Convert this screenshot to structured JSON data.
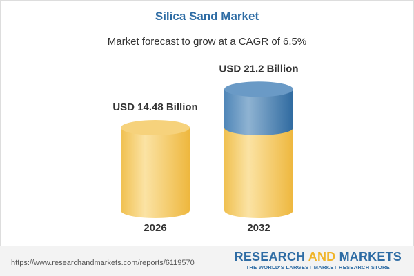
{
  "title": "Silica Sand Market",
  "subtitle": "Market forecast to grow at a CAGR of 6.5%",
  "chart_data": {
    "type": "bar",
    "categories": [
      "2026",
      "2032"
    ],
    "values": [
      14.48,
      21.2
    ],
    "data_labels": [
      "USD 14.48 Billion",
      "USD 21.2 Billion"
    ],
    "colors": {
      "base": "#f2c55c",
      "growth": "#4f86b8"
    }
  },
  "footer": {
    "url": "https://www.researchandmarkets.com/reports/6119570",
    "logo_part1": "RESEARCH ",
    "logo_part2": "AND",
    "logo_part3": " MARKETS",
    "tagline": "THE WORLD'S LARGEST MARKET RESEARCH STORE"
  }
}
